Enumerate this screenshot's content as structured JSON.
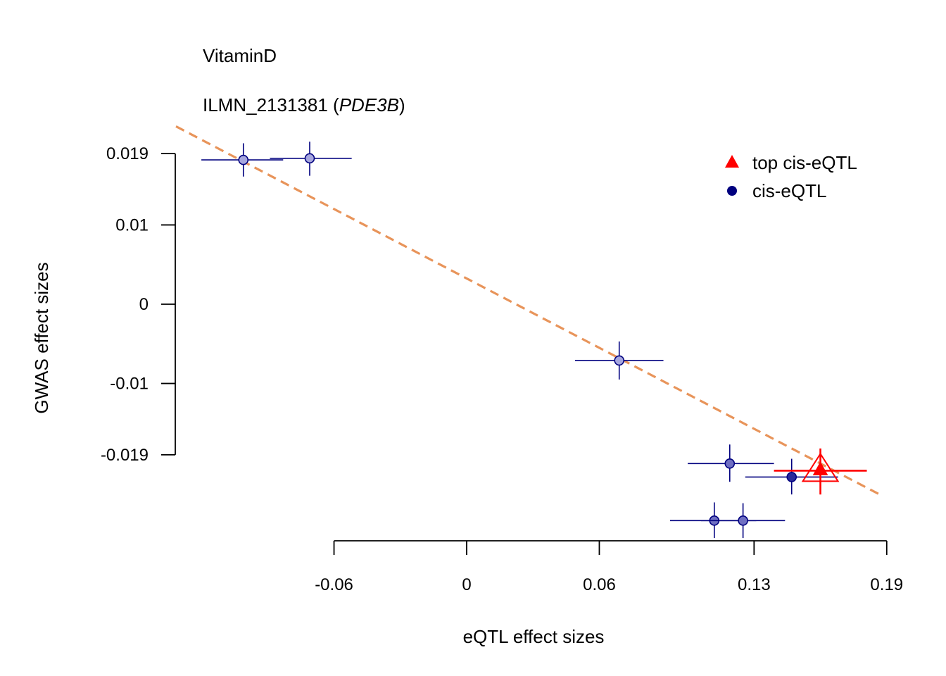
{
  "title": "VitaminD",
  "subtitle": {
    "probe": "ILMN_2131381",
    "open": " (",
    "gene": "PDE3B",
    "close": ")"
  },
  "colors": {
    "ciseqtl": "#00007f",
    "ciseqtl_fill": "#8c8cd0",
    "top": "#ff0000",
    "fit_line": "#e8945a",
    "axis": "#000000"
  },
  "chart_data": {
    "type": "scatter",
    "xlabel": "eQTL effect sizes",
    "ylabel": "GWAS effect sizes",
    "x_ticks": [
      {
        "value": -0.06,
        "label": "-0.06"
      },
      {
        "value": 0,
        "label": "0"
      },
      {
        "value": 0.06,
        "label": "0.06"
      },
      {
        "value": 0.13,
        "label": "0.13"
      },
      {
        "value": 0.19,
        "label": "0.19"
      }
    ],
    "y_ticks": [
      {
        "value": 0.019,
        "label": "0.019"
      },
      {
        "value": 0.01,
        "label": "0.01"
      },
      {
        "value": 0,
        "label": "0"
      },
      {
        "value": -0.01,
        "label": "-0.01"
      },
      {
        "value": -0.019,
        "label": "-0.019"
      }
    ],
    "legend": {
      "position": "top-right",
      "entries": [
        {
          "label": "top cis-eQTL",
          "symbol": "triangle",
          "color": "#ff0000"
        },
        {
          "label": "cis-eQTL",
          "symbol": "circle",
          "color": "#00007f"
        }
      ]
    },
    "points": [
      {
        "x": -0.101,
        "y": 0.0182,
        "x_lo": -0.12,
        "x_hi": -0.083,
        "y_lo": 0.0161,
        "y_hi": 0.0203,
        "type": "cis-eQTL",
        "fill": "light"
      },
      {
        "x": -0.071,
        "y": 0.0184,
        "x_lo": -0.089,
        "x_hi": -0.052,
        "y_lo": 0.0162,
        "y_hi": 0.0205,
        "type": "cis-eQTL",
        "fill": "light"
      },
      {
        "x": 0.069,
        "y": -0.0071,
        "x_lo": 0.049,
        "x_hi": 0.089,
        "y_lo": -0.0095,
        "y_hi": -0.0047,
        "type": "cis-eQTL",
        "fill": "light"
      },
      {
        "x": 0.119,
        "y": -0.0201,
        "x_lo": 0.1,
        "x_hi": 0.139,
        "y_lo": -0.0224,
        "y_hi": -0.0177,
        "type": "cis-eQTL",
        "fill": "mid"
      },
      {
        "x": 0.147,
        "y": -0.0218,
        "x_lo": 0.126,
        "x_hi": 0.168,
        "y_lo": -0.024,
        "y_hi": -0.0195,
        "type": "cis-eQTL",
        "fill": "dark"
      },
      {
        "x": 0.112,
        "y": -0.0273,
        "x_lo": 0.092,
        "x_hi": 0.131,
        "y_lo": -0.0295,
        "y_hi": -0.025,
        "type": "cis-eQTL",
        "fill": "mid"
      },
      {
        "x": 0.125,
        "y": -0.0273,
        "x_lo": 0.106,
        "x_hi": 0.144,
        "y_lo": -0.0295,
        "y_hi": -0.0251,
        "type": "cis-eQTL",
        "fill": "mid"
      },
      {
        "x": 0.16,
        "y": -0.021,
        "x_lo": 0.139,
        "x_hi": 0.181,
        "y_lo": -0.024,
        "y_hi": -0.0182,
        "type": "top cis-eQTL",
        "fill": "solid"
      }
    ],
    "fit_line": {
      "intercept": 0.00325,
      "slope": -0.1459,
      "style": "dashed"
    }
  }
}
